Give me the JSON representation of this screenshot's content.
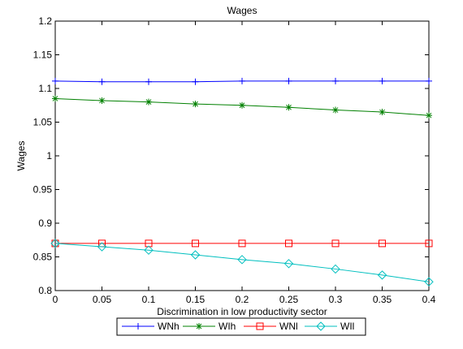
{
  "chart_data": {
    "type": "line",
    "title": "Wages",
    "xlabel": "Discrimination in low productivity sector",
    "ylabel": "Wages",
    "x": [
      0,
      0.05,
      0.1,
      0.15,
      0.2,
      0.25,
      0.3,
      0.35,
      0.4
    ],
    "xlim": [
      0,
      0.4
    ],
    "ylim": [
      0.8,
      1.2
    ],
    "x_ticks": [
      "0",
      "0.05",
      "0.1",
      "0.15",
      "0.2",
      "0.25",
      "0.3",
      "0.35",
      "0.4"
    ],
    "y_ticks": [
      "0.8",
      "0.85",
      "0.9",
      "0.95",
      "1",
      "1.05",
      "1.1",
      "1.15",
      "1.2"
    ],
    "x_tick_values": [
      0,
      0.05,
      0.1,
      0.15,
      0.2,
      0.25,
      0.3,
      0.35,
      0.4
    ],
    "y_tick_values": [
      0.8,
      0.85,
      0.9,
      0.95,
      1,
      1.05,
      1.1,
      1.15,
      1.2
    ],
    "grid": false,
    "legend_position": "bottom-outside",
    "series": [
      {
        "name": "WNh",
        "color": "#0000ff",
        "marker": "plus",
        "values": [
          1.111,
          1.11,
          1.11,
          1.11,
          1.111,
          1.111,
          1.111,
          1.111,
          1.111
        ]
      },
      {
        "name": "WIh",
        "color": "#008000",
        "marker": "star",
        "values": [
          1.085,
          1.082,
          1.08,
          1.077,
          1.075,
          1.072,
          1.068,
          1.065,
          1.06
        ]
      },
      {
        "name": "WNl",
        "color": "#ff0000",
        "marker": "square",
        "values": [
          0.87,
          0.87,
          0.87,
          0.87,
          0.87,
          0.87,
          0.87,
          0.87,
          0.87
        ]
      },
      {
        "name": "WIl",
        "color": "#00bfbf",
        "marker": "diamond",
        "values": [
          0.87,
          0.865,
          0.86,
          0.853,
          0.846,
          0.84,
          0.832,
          0.823,
          0.813
        ]
      }
    ]
  }
}
